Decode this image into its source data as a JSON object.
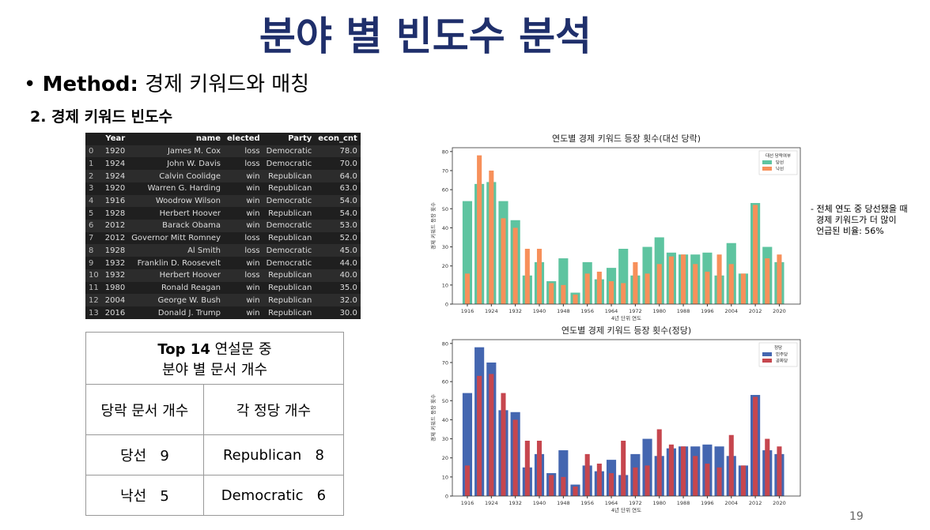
{
  "slide": {
    "title": "분야 별 빈도수 분석",
    "bullet_bold": "Method:",
    "bullet_text": "경제 키워드와 매칭",
    "subheading": "2. 경제 키워드 빈도수",
    "annotation": [
      "- 전체 연도 중 당선됐을 때",
      "경제 키워드가 더 많이",
      "언급된 비율: 56%"
    ],
    "page_number": "19"
  },
  "dataframe": {
    "columns": [
      "Year",
      "name",
      "elected",
      "Party",
      "econ_cnt"
    ],
    "index": [
      "0",
      "1",
      "2",
      "3",
      "4",
      "5",
      "6",
      "7",
      "8",
      "9",
      "10",
      "11",
      "12",
      "13"
    ],
    "rows": [
      [
        "1920",
        "James M. Cox",
        "loss",
        "Democratic",
        "78.0"
      ],
      [
        "1924",
        "John W. Davis",
        "loss",
        "Democratic",
        "70.0"
      ],
      [
        "1924",
        "Calvin Coolidge",
        "win",
        "Republican",
        "64.0"
      ],
      [
        "1920",
        "Warren G. Harding",
        "win",
        "Republican",
        "63.0"
      ],
      [
        "1916",
        "Woodrow Wilson",
        "win",
        "Democratic",
        "54.0"
      ],
      [
        "1928",
        "Herbert Hoover",
        "win",
        "Republican",
        "54.0"
      ],
      [
        "2012",
        "Barack Obama",
        "win",
        "Democratic",
        "53.0"
      ],
      [
        "2012",
        "Governor Mitt Romney",
        "loss",
        "Republican",
        "52.0"
      ],
      [
        "1928",
        "Al Smith",
        "loss",
        "Democratic",
        "45.0"
      ],
      [
        "1932",
        "Franklin D. Roosevelt",
        "win",
        "Democratic",
        "44.0"
      ],
      [
        "1932",
        "Herbert Hoover",
        "loss",
        "Republican",
        "40.0"
      ],
      [
        "1980",
        "Ronald Reagan",
        "win",
        "Republican",
        "35.0"
      ],
      [
        "2004",
        "George W. Bush",
        "win",
        "Republican",
        "32.0"
      ],
      [
        "2016",
        "Donald J. Trump",
        "win",
        "Republican",
        "30.0"
      ]
    ]
  },
  "summary_table": {
    "header_bold": "Top 14",
    "header_rest": "연설문 중",
    "header_line2": "분야 별 문서 개수",
    "rows": [
      [
        "당락 문서 개수",
        "각 정당 개수"
      ],
      [
        "당선",
        "9",
        "Republican",
        "8"
      ],
      [
        "낙선",
        "5",
        "Democratic",
        "6"
      ]
    ]
  },
  "chart_data": [
    {
      "type": "bar",
      "title": "연도별 경제 키워드 등장 횟수(대선 당락)",
      "x_label": "4년 단위 연도",
      "y_label": "경제 키워드 등장 횟수",
      "legend_title": "대선 당락여부",
      "legend": "upper right",
      "x": [
        1916,
        1920,
        1924,
        1928,
        1932,
        1936,
        1940,
        1944,
        1948,
        1952,
        1956,
        1960,
        1964,
        1968,
        1972,
        1976,
        1980,
        1984,
        1988,
        1992,
        1996,
        2000,
        2004,
        2008,
        2012,
        2016,
        2020
      ],
      "xlim": [
        1911,
        2027
      ],
      "xticks": [
        1916,
        1924,
        1932,
        1940,
        1948,
        1956,
        1964,
        1972,
        1980,
        1988,
        1996,
        2004,
        2012,
        2020
      ],
      "ylim": [
        0,
        82
      ],
      "yticks": [
        0,
        10,
        20,
        30,
        40,
        50,
        60,
        70,
        80
      ],
      "series": [
        {
          "name": "당선",
          "color": "#5ec4a0",
          "values": [
            54,
            63,
            64,
            54,
            44,
            15,
            22,
            12,
            24,
            6,
            22,
            13,
            19,
            29,
            15,
            30,
            35,
            27,
            26,
            26,
            27,
            15,
            32,
            16,
            53,
            30,
            22
          ]
        },
        {
          "name": "낙선",
          "color": "#f7905a",
          "values": [
            16,
            78,
            70,
            45,
            40,
            29,
            29,
            11,
            10,
            5,
            16,
            17,
            12,
            11,
            22,
            16,
            21,
            25,
            26,
            21,
            17,
            26,
            21,
            16,
            52,
            24,
            26
          ]
        }
      ]
    },
    {
      "type": "bar",
      "title": "연도별 경제 키워드 등장 횟수(정당)",
      "x_label": "4년 단위 연도",
      "y_label": "경제 키워드 등장 횟수",
      "legend_title": "정당",
      "legend": "upper right",
      "x": [
        1916,
        1920,
        1924,
        1928,
        1932,
        1936,
        1940,
        1944,
        1948,
        1952,
        1956,
        1960,
        1964,
        1968,
        1972,
        1976,
        1980,
        1984,
        1988,
        1992,
        1996,
        2000,
        2004,
        2008,
        2012,
        2016,
        2020
      ],
      "xlim": [
        1911,
        2027
      ],
      "xticks": [
        1916,
        1924,
        1932,
        1940,
        1948,
        1956,
        1964,
        1972,
        1980,
        1988,
        1996,
        2004,
        2012,
        2020
      ],
      "ylim": [
        0,
        82
      ],
      "yticks": [
        0,
        10,
        20,
        30,
        40,
        50,
        60,
        70,
        80
      ],
      "series": [
        {
          "name": "민주당",
          "color": "#4466b0",
          "values": [
            54,
            78,
            70,
            45,
            44,
            15,
            22,
            12,
            24,
            6,
            16,
            13,
            19,
            11,
            22,
            30,
            21,
            25,
            26,
            26,
            27,
            26,
            21,
            16,
            53,
            24,
            22
          ]
        },
        {
          "name": "공화당",
          "color": "#c6464e",
          "values": [
            16,
            63,
            64,
            54,
            40,
            29,
            29,
            11,
            10,
            5,
            22,
            17,
            12,
            29,
            15,
            16,
            35,
            27,
            26,
            21,
            17,
            15,
            32,
            16,
            52,
            30,
            26
          ]
        }
      ]
    }
  ]
}
